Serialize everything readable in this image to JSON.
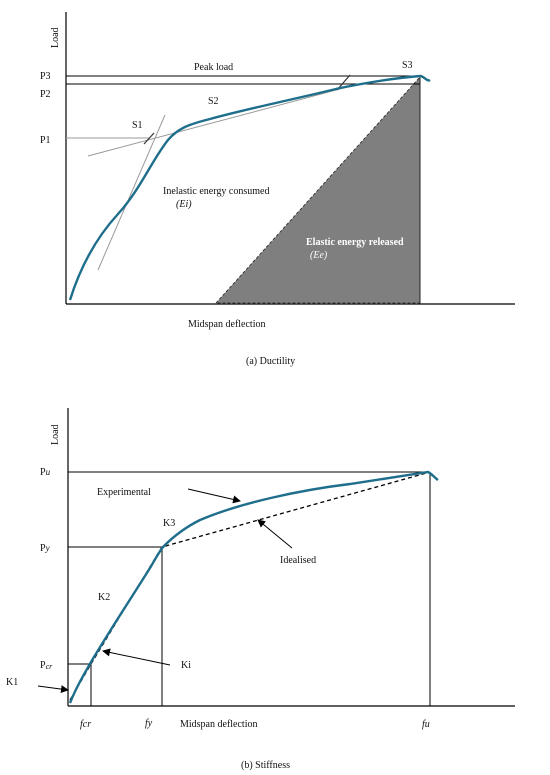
{
  "panel_a": {
    "caption": "(a) Ductility",
    "y_axis": "Load",
    "x_axis": "Midspan deflection",
    "p3": "P3",
    "p2": "P2",
    "p1": "P1",
    "peak_load": "Peak load",
    "s1": "S1",
    "s2": "S2",
    "s3": "S3",
    "inelastic": "Inelastic energy consumed",
    "inelastic_sym": "(Ei)",
    "elastic": "Elastic energy released",
    "elastic_sym": "(Ee)",
    "colors": {
      "curve": "#1f6e8c",
      "triangle": "#7f7f7f",
      "tangent": "#999999"
    }
  },
  "panel_b": {
    "caption": "(b) Stiffness",
    "y_axis": "Load",
    "x_axis": "Midspan deflection",
    "pu_main": "P",
    "pu_sub": "u",
    "py_main": "P",
    "py_sub": "y",
    "pcr_main": "P",
    "pcr_sub": "cr",
    "fcr": "fcr",
    "fy": "fy",
    "fu": "fu",
    "experimental": "Experimental",
    "idealised": "Idealised",
    "k1": "K1",
    "k2": "K2",
    "k3": "K3",
    "ki": "Ki",
    "colors": {
      "curve": "#1f6e8c",
      "idealised": "#000000"
    }
  }
}
